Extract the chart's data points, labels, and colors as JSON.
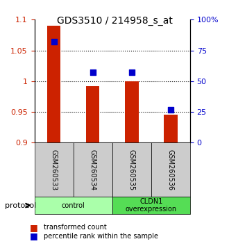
{
  "title": "GDS3510 / 214958_s_at",
  "samples": [
    "GSM260533",
    "GSM260534",
    "GSM260535",
    "GSM260536"
  ],
  "bar_values": [
    1.09,
    0.992,
    1.0,
    0.945
  ],
  "bar_baseline": 0.9,
  "bar_color": "#cc2200",
  "dot_values_pct": [
    82,
    57,
    57,
    27
  ],
  "dot_color": "#0000cc",
  "ylim_left": [
    0.9,
    1.1
  ],
  "ylim_right": [
    0,
    100
  ],
  "yticks_left": [
    0.9,
    0.95,
    1.0,
    1.05,
    1.1
  ],
  "yticks_right": [
    0,
    25,
    50,
    75,
    100
  ],
  "ytick_labels_left": [
    "0.9",
    "0.95",
    "1",
    "1.05",
    "1.1"
  ],
  "ytick_labels_right": [
    "0",
    "25",
    "50",
    "75",
    "100%"
  ],
  "groups": [
    {
      "label": "control",
      "samples": [
        0,
        1
      ],
      "color": "#aaffaa"
    },
    {
      "label": "CLDN1\noverexpression",
      "samples": [
        2,
        3
      ],
      "color": "#55dd55"
    }
  ],
  "protocol_label": "protocol",
  "legend_items": [
    {
      "color": "#cc2200",
      "marker": "s",
      "label": "transformed count"
    },
    {
      "color": "#0000cc",
      "marker": "s",
      "label": "percentile rank within the sample"
    }
  ],
  "sample_box_color": "#cccccc",
  "bar_width": 0.35,
  "dot_size": 40
}
